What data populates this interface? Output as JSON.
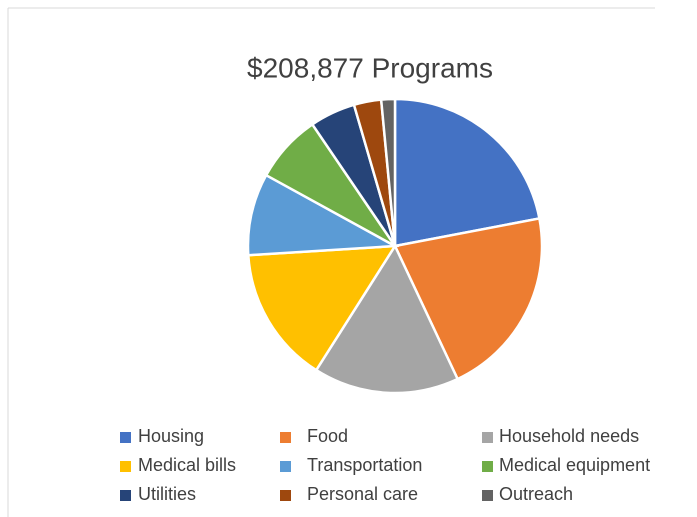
{
  "chart_data": {
    "type": "pie",
    "title": "$208,877 Programs",
    "categories": [
      "Housing",
      "Food",
      "Household needs",
      "Medical bills",
      "Transportation",
      "Medical equipment",
      "Utilities",
      "Personal care",
      "Outreach"
    ],
    "values": [
      22,
      21,
      16,
      15,
      9,
      7.5,
      5,
      3,
      1.5
    ],
    "colors": [
      "#4472c4",
      "#ed7d31",
      "#a5a5a5",
      "#ffc000",
      "#5b9bd5",
      "#70ad47",
      "#264478",
      "#9e480e",
      "#636363"
    ]
  }
}
